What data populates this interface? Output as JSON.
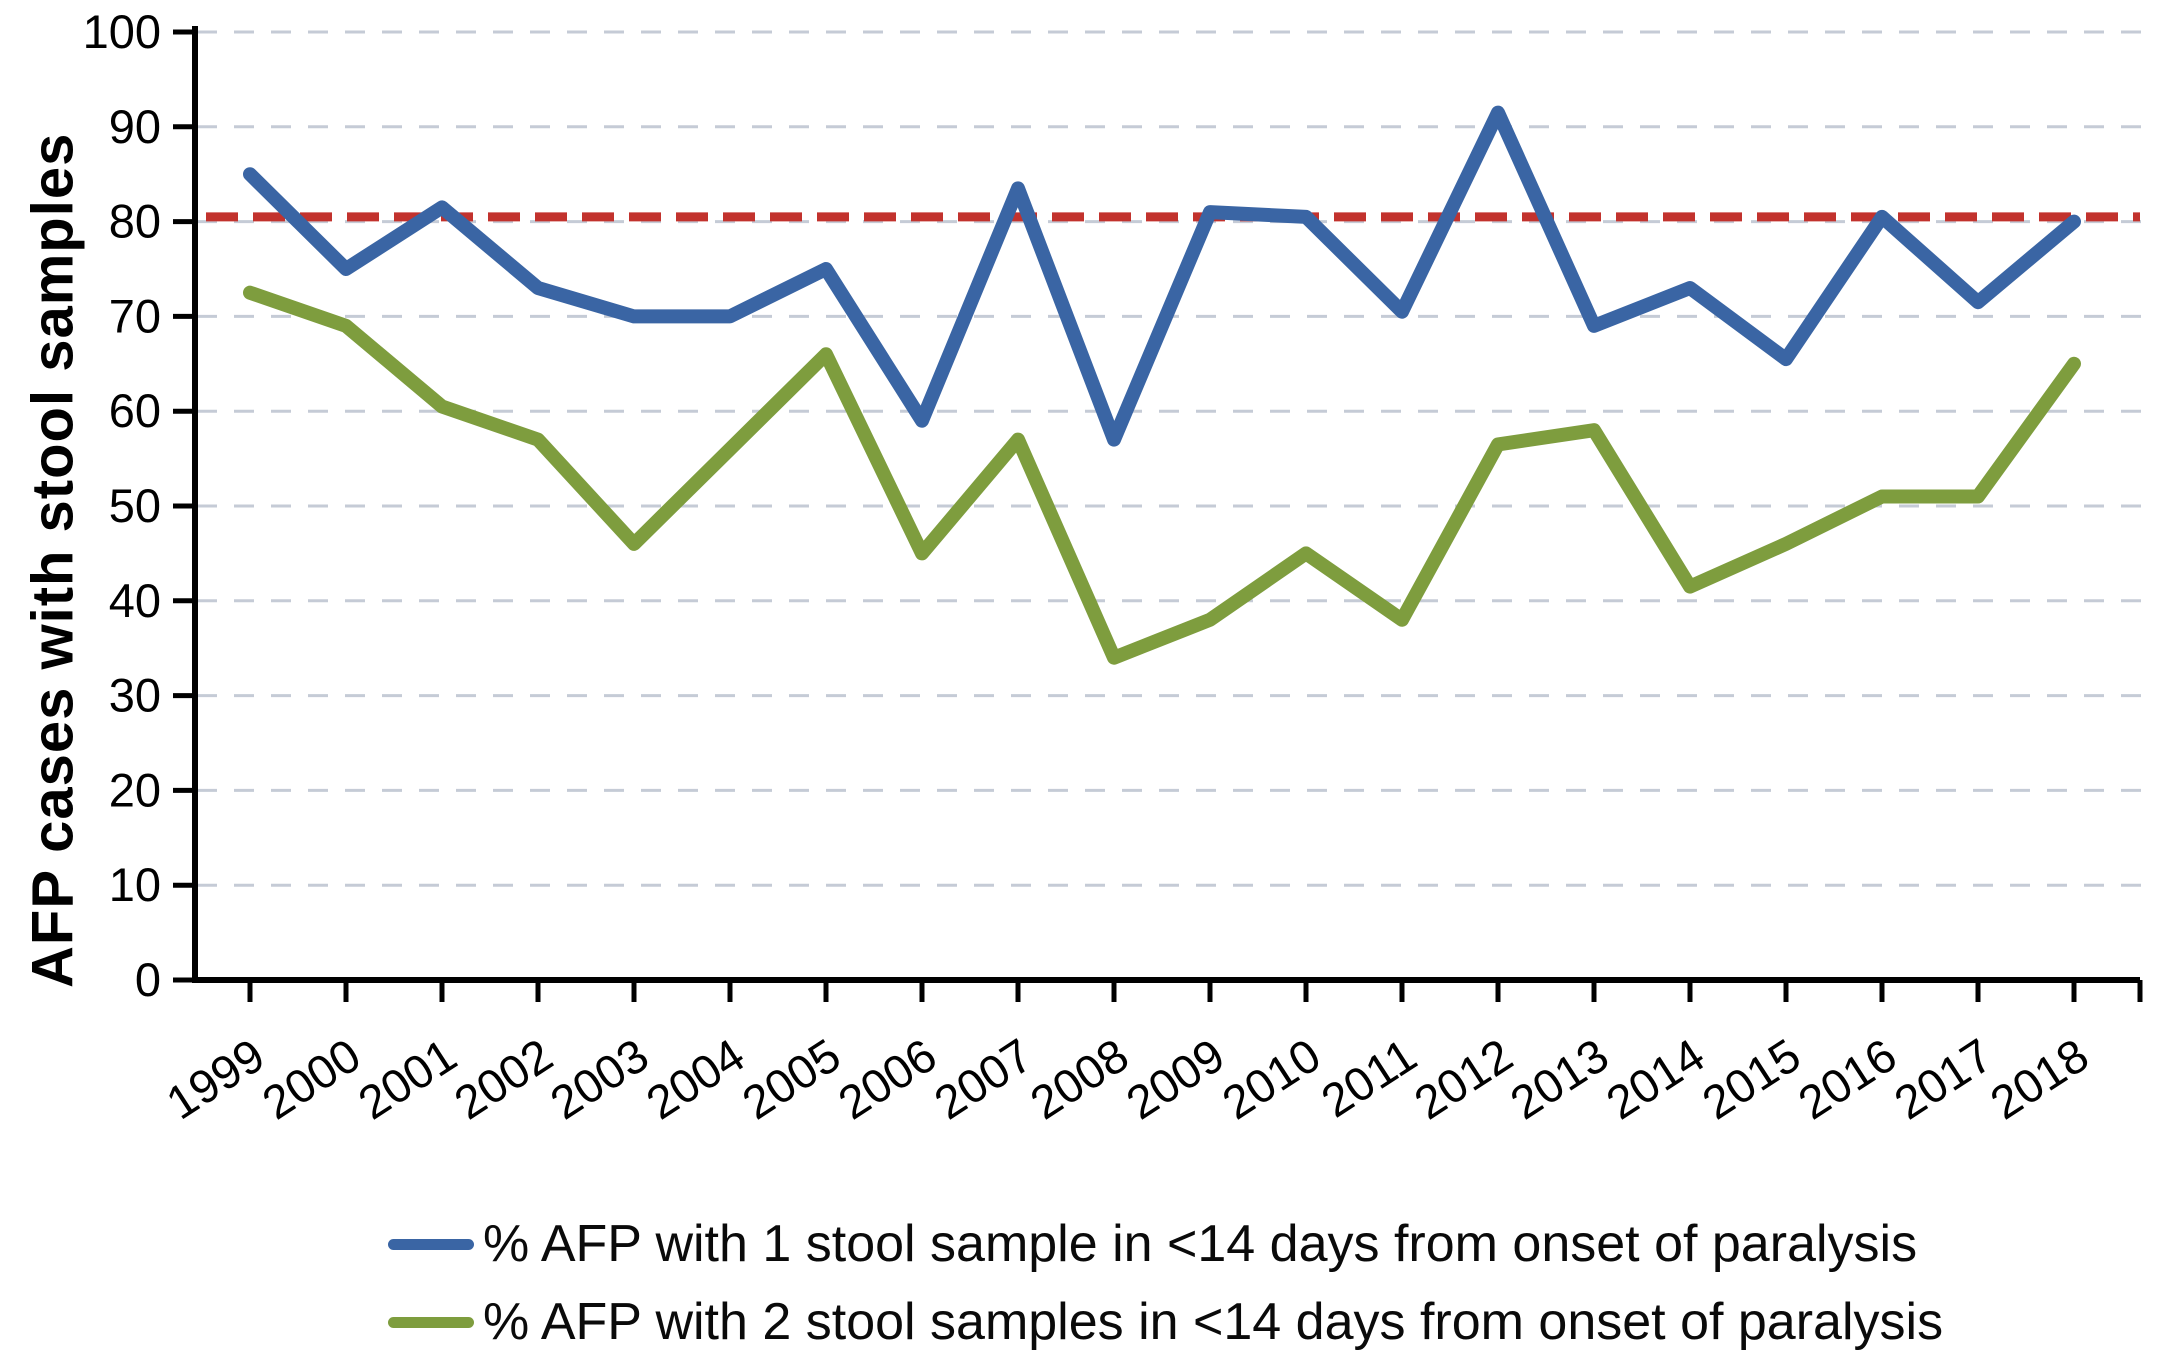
{
  "figure": {
    "y_axis_title": "AFP cases with stool samples",
    "colors": {
      "series_1_stool": "#3A65A4",
      "series_2_stool": "#7E9D3E",
      "target_line": "#C2322D",
      "gridline": "#C5CBD6",
      "axis": "#000000",
      "tick_label": "#000000",
      "background": "#FFFFFF"
    }
  },
  "legend": [
    {
      "label": "% AFP with 1 stool sample in <14 days from onset of paralysis",
      "color": "#3A65A4"
    },
    {
      "label": "% AFP with 2 stool samples in <14 days from onset of paralysis",
      "color": "#7E9D3E"
    }
  ],
  "chart_data": {
    "type": "line",
    "title": "",
    "xlabel": "",
    "ylabel": "AFP cases with stool samples",
    "x": [
      1999,
      2000,
      2001,
      2002,
      2003,
      2004,
      2005,
      2006,
      2007,
      2008,
      2009,
      2010,
      2011,
      2012,
      2013,
      2014,
      2015,
      2016,
      2017,
      2018
    ],
    "series": [
      {
        "name": "% AFP with 1 stool sample in <14 days from onset of paralysis",
        "color": "#3A65A4",
        "values": [
          85,
          75,
          81.5,
          73,
          70,
          70,
          75,
          59,
          83.5,
          57,
          81,
          80.5,
          70.5,
          91.5,
          69,
          73,
          65.5,
          80.5,
          71.5,
          80
        ]
      },
      {
        "name": "% AFP with 2 stool samples in <14 days from onset of paralysis",
        "color": "#7E9D3E",
        "values": [
          72.5,
          69,
          60.5,
          57,
          46,
          56,
          66,
          45,
          57,
          34,
          38,
          45,
          38,
          56.5,
          58,
          41.5,
          46,
          51,
          51,
          65
        ]
      }
    ],
    "target_line": {
      "value": 80.5,
      "style": "dashed",
      "color": "#C2322D"
    },
    "ylim": [
      0,
      100
    ],
    "ytick_interval": 10,
    "grid": "horizontal-dashed",
    "legend_position": "bottom-left",
    "xtick_rotation_deg": -33
  }
}
